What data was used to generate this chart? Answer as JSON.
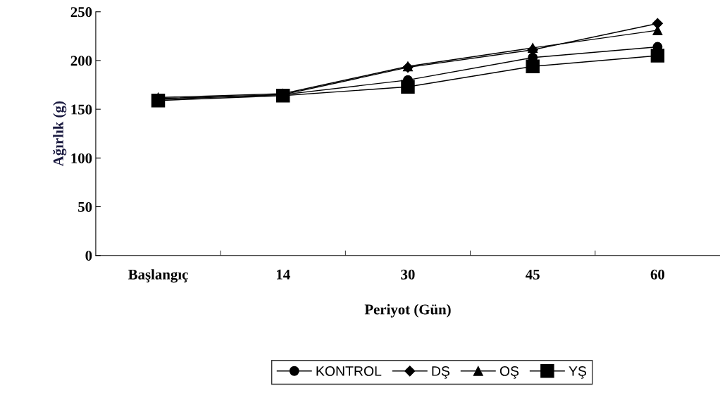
{
  "chart_data": {
    "type": "line",
    "xlabel": "Periyot (Gün)",
    "ylabel": "Ağırlık (g)",
    "categories": [
      "Başlangıç",
      "14",
      "30",
      "45",
      "60"
    ],
    "ylim": [
      0,
      250
    ],
    "yticks": [
      0,
      50,
      100,
      150,
      200,
      250
    ],
    "grid": false,
    "legend": "bottom",
    "series": [
      {
        "name": "KONTROL",
        "color": "#000000",
        "marker": "circle",
        "values": [
          161,
          165,
          180,
          203,
          214
        ]
      },
      {
        "name": "DŞ",
        "color": "#000000",
        "marker": "diamond",
        "values": [
          160,
          165,
          193,
          211,
          238
        ]
      },
      {
        "name": "OŞ",
        "color": "#000000",
        "marker": "triangle",
        "values": [
          162,
          166,
          194,
          213,
          231
        ]
      },
      {
        "name": "YŞ",
        "color": "#000000",
        "marker": "square",
        "values": [
          159,
          164,
          173,
          194,
          205
        ]
      }
    ]
  }
}
